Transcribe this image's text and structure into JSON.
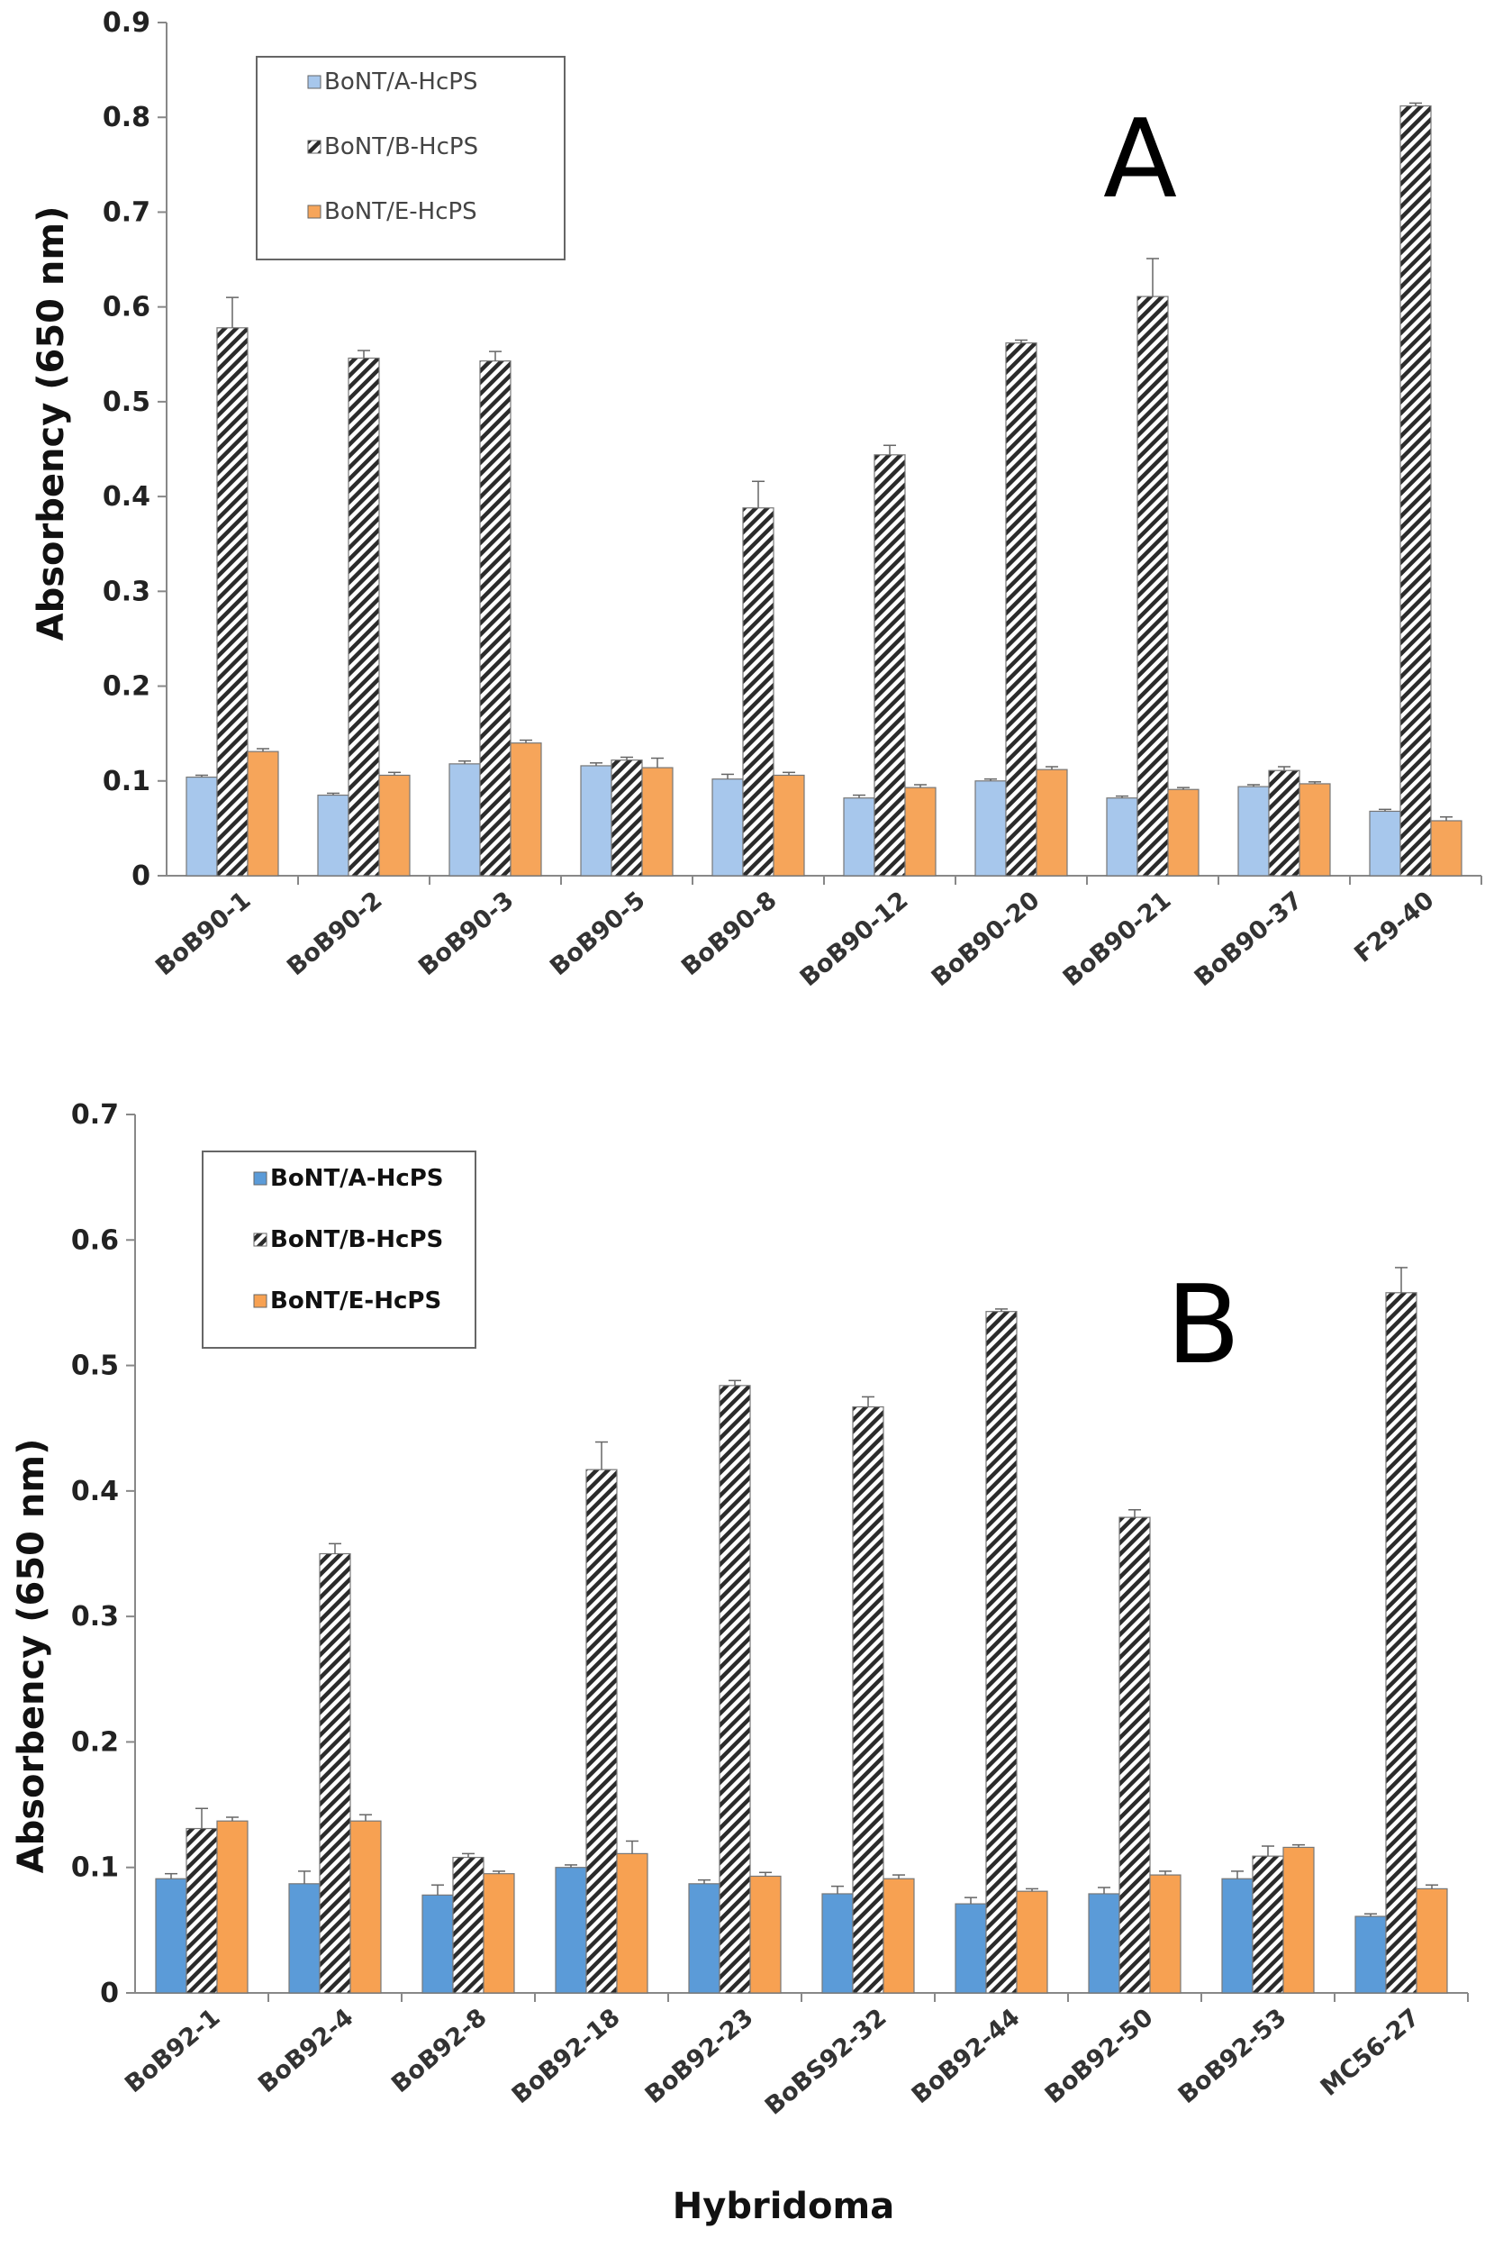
{
  "colors": {
    "panel_a_A": "#a7c7ec",
    "panel_a_E": "#f6a55a",
    "panel_b_A": "#5b9bd8",
    "panel_b_E": "#f7a152",
    "hatch": "#2b2b2b",
    "axis": "#888888"
  },
  "chart_data": [
    {
      "type": "bar",
      "panel_label": "A",
      "ylabel": "Absorbency (650 nm)",
      "xlabel": "",
      "ylim": [
        0,
        0.9
      ],
      "yticks": [
        "0",
        "0.1",
        "0.2",
        "0.3",
        "0.4",
        "0.5",
        "0.6",
        "0.7",
        "0.8",
        "0.9"
      ],
      "categories": [
        "BoB90-1",
        "BoB90-2",
        "BoB90-3",
        "BoB90-5",
        "BoB90-8",
        "BoB90-12",
        "BoB90-20",
        "BoB90-21",
        "BoB90-37",
        "F29-40"
      ],
      "legend_position": "top-left",
      "series": [
        {
          "name": "BoNT/A-HcPS",
          "values": [
            0.104,
            0.085,
            0.118,
            0.116,
            0.102,
            0.082,
            0.1,
            0.082,
            0.094,
            0.068
          ],
          "errors": [
            0.002,
            0.002,
            0.003,
            0.003,
            0.005,
            0.003,
            0.002,
            0.002,
            0.002,
            0.002
          ]
        },
        {
          "name": "BoNT/B-HcPS",
          "values": [
            0.578,
            0.546,
            0.543,
            0.122,
            0.388,
            0.444,
            0.562,
            0.611,
            0.111,
            0.812
          ],
          "errors": [
            0.032,
            0.008,
            0.01,
            0.003,
            0.028,
            0.01,
            0.003,
            0.04,
            0.004,
            0.003
          ]
        },
        {
          "name": "BoNT/E-HcPS",
          "values": [
            0.131,
            0.106,
            0.14,
            0.114,
            0.106,
            0.093,
            0.112,
            0.091,
            0.097,
            0.058
          ],
          "errors": [
            0.003,
            0.003,
            0.003,
            0.01,
            0.003,
            0.003,
            0.003,
            0.002,
            0.002,
            0.004
          ]
        }
      ]
    },
    {
      "type": "bar",
      "panel_label": "B",
      "ylabel": "Absorbency (650 nm)",
      "xlabel": "Hybridoma",
      "ylim": [
        0,
        0.7
      ],
      "yticks": [
        "0",
        "0.1",
        "0.2",
        "0.3",
        "0.4",
        "0.5",
        "0.6",
        "0.7"
      ],
      "categories": [
        "BoB92-1",
        "BoB92-4",
        "BoB92-8",
        "BoB92-18",
        "BoB92-23",
        "BoBS92-32",
        "BoB92-44",
        "BoB92-50",
        "BoB92-53",
        "MC56-27"
      ],
      "legend_position": "top-left",
      "series": [
        {
          "name": "BoNT/A-HcPS",
          "values": [
            0.091,
            0.087,
            0.078,
            0.1,
            0.087,
            0.079,
            0.071,
            0.079,
            0.091,
            0.061
          ],
          "errors": [
            0.004,
            0.01,
            0.008,
            0.002,
            0.003,
            0.006,
            0.005,
            0.005,
            0.006,
            0.002
          ]
        },
        {
          "name": "BoNT/B-HcPS",
          "values": [
            0.131,
            0.35,
            0.108,
            0.417,
            0.484,
            0.467,
            0.543,
            0.379,
            0.109,
            0.558
          ],
          "errors": [
            0.016,
            0.008,
            0.003,
            0.022,
            0.004,
            0.008,
            0.002,
            0.006,
            0.008,
            0.02
          ]
        },
        {
          "name": "BoNT/E-HcPS",
          "values": [
            0.137,
            0.137,
            0.095,
            0.111,
            0.093,
            0.091,
            0.081,
            0.094,
            0.116,
            0.083
          ],
          "errors": [
            0.003,
            0.005,
            0.002,
            0.01,
            0.003,
            0.003,
            0.002,
            0.003,
            0.002,
            0.003
          ]
        }
      ]
    }
  ]
}
